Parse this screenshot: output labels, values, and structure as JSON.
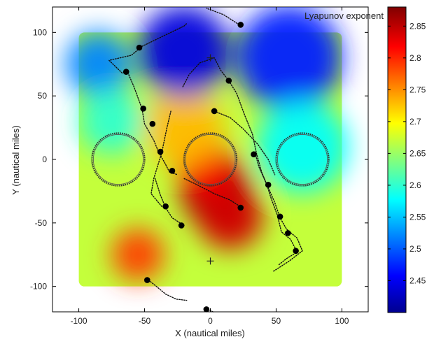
{
  "chart_data": {
    "type": "heatmap",
    "title": "",
    "xlabel": "X (nautical miles)",
    "ylabel": "Y (nautical miles)",
    "xlim": [
      -120,
      120
    ],
    "ylim": [
      -120,
      120
    ],
    "x_ticks": [
      -100,
      -50,
      0,
      50,
      100
    ],
    "y_ticks": [
      100,
      50,
      0,
      -50,
      -100
    ],
    "x_tick_labels": [
      "-100",
      "-50",
      "0",
      "50",
      "100"
    ],
    "y_tick_labels": [
      "100",
      "50",
      "0",
      "-50",
      "-100"
    ],
    "field_extent": {
      "x": [
        -100,
        100
      ],
      "y": [
        -100,
        100
      ]
    },
    "grid": false,
    "colorbar": {
      "label": "Lyapunov exponent",
      "range": [
        2.4,
        2.88
      ],
      "ticks": [
        2.45,
        2.5,
        2.55,
        2.6,
        2.65,
        2.7,
        2.75,
        2.8,
        2.85
      ],
      "tick_labels": [
        "2.45",
        "2.5",
        "2.55",
        "2.6",
        "2.65",
        "2.7",
        "2.75",
        "2.8",
        "2.85"
      ],
      "colormap": "jet"
    },
    "field_features": [
      {
        "x": 5,
        "y": -25,
        "value": 2.86,
        "radius": 28
      },
      {
        "x": 15,
        "y": -45,
        "value": 2.84,
        "radius": 25
      },
      {
        "x": -5,
        "y": -5,
        "value": 2.82,
        "radius": 22
      },
      {
        "x": -55,
        "y": -75,
        "value": 2.79,
        "radius": 20
      },
      {
        "x": -20,
        "y": 25,
        "value": 2.73,
        "radius": 30
      },
      {
        "x": -20,
        "y": 85,
        "value": 2.44,
        "radius": 35
      },
      {
        "x": 60,
        "y": 80,
        "value": 2.47,
        "radius": 40
      },
      {
        "x": -85,
        "y": 75,
        "value": 2.52,
        "radius": 25
      },
      {
        "x": 70,
        "y": 10,
        "value": 2.58,
        "radius": 35
      },
      {
        "x": -75,
        "y": 30,
        "value": 2.6,
        "radius": 25
      }
    ],
    "obstacles": [
      {
        "name": "left circle",
        "cx": -70,
        "cy": 0,
        "r": 20
      },
      {
        "name": "center circle",
        "cx": 0,
        "cy": 0,
        "r": 20
      },
      {
        "name": "right circle",
        "cx": 70,
        "cy": 0,
        "r": 20
      }
    ],
    "waypoint_markers": [
      {
        "x": 0,
        "y": 80
      },
      {
        "x": 0,
        "y": -80
      }
    ],
    "trajectories": [
      {
        "points": [
          [
            22,
            106
          ],
          [
            10,
            114
          ],
          [
            -3,
            119
          ]
        ]
      },
      {
        "points": [
          [
            -52,
            89
          ],
          [
            -60,
            82
          ],
          [
            -77,
            78
          ],
          [
            -67,
            68
          ],
          [
            -63,
            69
          ],
          [
            -58,
            57
          ],
          [
            -52,
            40
          ],
          [
            -50,
            28
          ],
          [
            -43,
            15
          ],
          [
            -39,
            5
          ],
          [
            -35,
            -2
          ],
          [
            -31,
            -10
          ],
          [
            -25,
            -12
          ]
        ]
      },
      {
        "points": [
          [
            -52,
            89
          ],
          [
            -30,
            100
          ],
          [
            -20,
            105
          ],
          [
            -18,
            107
          ]
        ]
      },
      {
        "points": [
          [
            -37,
            -37
          ],
          [
            -45,
            -27
          ],
          [
            -43,
            -15
          ],
          [
            -40,
            -5
          ],
          [
            -37,
            5
          ],
          [
            -35,
            15
          ],
          [
            -33,
            25
          ],
          [
            -30,
            38
          ]
        ]
      },
      {
        "points": [
          [
            -20,
            -52
          ],
          [
            -29,
            -46
          ],
          [
            -34,
            -38
          ],
          [
            -38,
            -28
          ],
          [
            -42,
            -15
          ]
        ]
      },
      {
        "points": [
          [
            14,
            62
          ],
          [
            8,
            70
          ],
          [
            3,
            80
          ],
          [
            -8,
            76
          ],
          [
            -16,
            67
          ],
          [
            -21,
            57
          ]
        ]
      },
      {
        "points": [
          [
            14,
            62
          ],
          [
            20,
            52
          ],
          [
            26,
            35
          ],
          [
            32,
            20
          ],
          [
            35,
            5
          ],
          [
            39,
            -10
          ],
          [
            43,
            -20
          ],
          [
            46,
            -30
          ],
          [
            51,
            -44
          ],
          [
            54,
            -57
          ],
          [
            61,
            -63
          ],
          [
            66,
            -73
          ],
          [
            58,
            -78
          ],
          [
            52,
            -83
          ]
        ]
      },
      {
        "points": [
          [
            3,
            38
          ],
          [
            15,
            33
          ],
          [
            25,
            24
          ],
          [
            36,
            12
          ],
          [
            44,
            0
          ],
          [
            49,
            -12
          ]
        ]
      },
      {
        "points": [
          [
            34,
            5
          ],
          [
            37,
            -6
          ],
          [
            43,
            -20
          ],
          [
            49,
            -34
          ],
          [
            53,
            -46
          ],
          [
            58,
            -55
          ],
          [
            66,
            -62
          ],
          [
            70,
            -72
          ],
          [
            60,
            -80
          ],
          [
            48,
            -88
          ]
        ]
      },
      {
        "points": [
          [
            24,
            -38
          ],
          [
            15,
            -32
          ],
          [
            3,
            -27
          ],
          [
            -10,
            -20
          ],
          [
            -20,
            -15
          ]
        ]
      },
      {
        "points": [
          [
            -47,
            -95
          ],
          [
            -41,
            -100
          ],
          [
            -34,
            -106
          ],
          [
            -26,
            -110
          ],
          [
            -18,
            -111
          ]
        ]
      },
      {
        "points": [
          [
            -2,
            -118
          ],
          [
            2,
            -120
          ]
        ]
      }
    ],
    "vehicles": [
      {
        "x": 23,
        "y": 106
      },
      {
        "x": -54,
        "y": 88
      },
      {
        "x": -64,
        "y": 69
      },
      {
        "x": -51,
        "y": 40
      },
      {
        "x": -44,
        "y": 28
      },
      {
        "x": -38,
        "y": 6
      },
      {
        "x": -29,
        "y": -9
      },
      {
        "x": -34,
        "y": -37
      },
      {
        "x": -22,
        "y": -52
      },
      {
        "x": 14,
        "y": 62
      },
      {
        "x": 3,
        "y": 38
      },
      {
        "x": 33,
        "y": 4
      },
      {
        "x": 44,
        "y": -20
      },
      {
        "x": 23,
        "y": -38
      },
      {
        "x": 53,
        "y": -45
      },
      {
        "x": 59,
        "y": -58
      },
      {
        "x": 65,
        "y": -72
      },
      {
        "x": -48,
        "y": -95
      },
      {
        "x": -3,
        "y": -118
      }
    ]
  }
}
